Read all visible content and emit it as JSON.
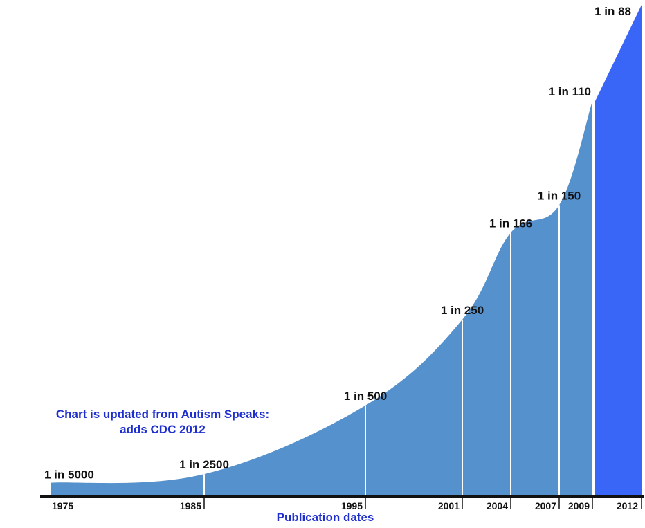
{
  "chart_data": {
    "type": "area",
    "title": "",
    "xlabel": "Publication dates",
    "ylabel": "",
    "annotation": "Chart is updated from Autism Speaks: adds CDC 2012",
    "x": [
      1975,
      1985,
      1995,
      2001,
      2004,
      2007,
      2009,
      2012
    ],
    "x_tick_labels": [
      "1975",
      "1985",
      "1995",
      "2001",
      "2004",
      "2007",
      "2009",
      "2012"
    ],
    "prevalence_labels": [
      "1 in 5000",
      "1 in 2500",
      "1 in 500",
      "1 in 250",
      "1 in 166",
      "1 in 150",
      "1 in 110",
      "1 in 88"
    ],
    "prevalence_denominators": [
      5000,
      2500,
      500,
      250,
      166,
      150,
      110,
      88
    ],
    "highlight_segment": {
      "from": 2009,
      "to": 2012,
      "label": "CDC 2012"
    },
    "colors": {
      "area": "#5591cc",
      "highlight": "#3a66f7",
      "divider": "#ffffff",
      "baseline": "#111111",
      "annotation_text": "#1f2fcf",
      "label_text": "#111111"
    }
  }
}
